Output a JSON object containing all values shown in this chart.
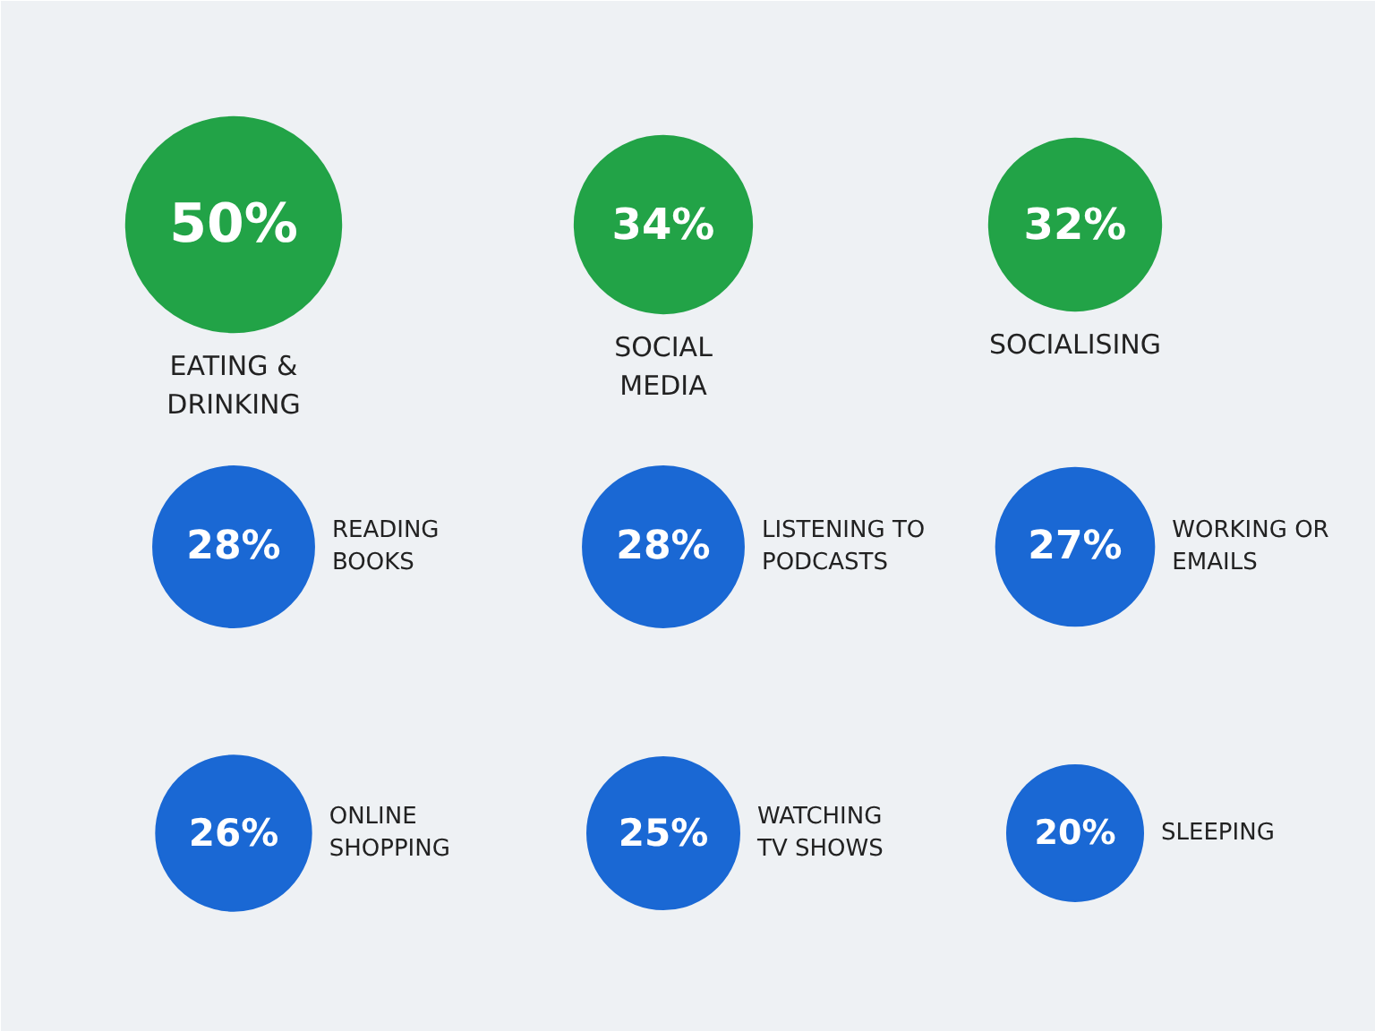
{
  "chart_data": {
    "type": "other",
    "categories": [
      "EATING &\nDRINKING",
      "SOCIAL\nMEDIA",
      "SOCIALISING",
      "READING\nBOOKS",
      "LISTENING TO\nPODCASTS",
      "WORKING OR\nEMAILS",
      "ONLINE\nSHOPPING",
      "WATCHING\nTV SHOWS",
      "SLEEPING"
    ],
    "values": [
      50,
      34,
      32,
      28,
      28,
      27,
      26,
      25,
      20
    ],
    "value_labels": [
      "50%",
      "34%",
      "32%",
      "28%",
      "28%",
      "27%",
      "26%",
      "25%",
      "20%"
    ],
    "colors": [
      "#22a347",
      "#22a347",
      "#22a347",
      "#1a68d4",
      "#1a68d4",
      "#1a68d4",
      "#1a68d4",
      "#1a68d4",
      "#1a68d4"
    ]
  }
}
